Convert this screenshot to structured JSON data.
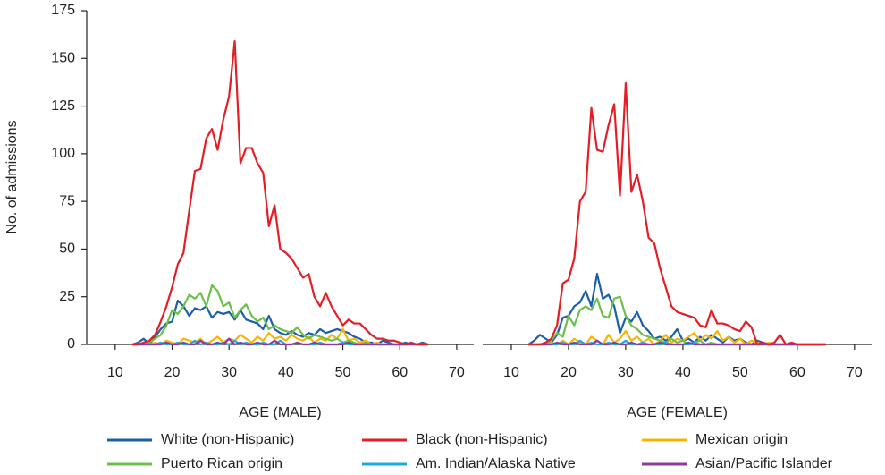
{
  "chart_data": [
    {
      "type": "line",
      "xlabel": "AGE (MALE)",
      "ylabel": "No. of admissions",
      "xlim": [
        5,
        73
      ],
      "ylim": [
        0,
        175
      ],
      "xticks": [
        10,
        20,
        30,
        40,
        50,
        60,
        70
      ],
      "yticks": [
        0,
        25,
        50,
        75,
        100,
        125,
        150,
        175
      ],
      "x": [
        13,
        14,
        15,
        16,
        17,
        18,
        19,
        20,
        21,
        22,
        23,
        24,
        25,
        26,
        27,
        28,
        29,
        30,
        31,
        32,
        33,
        34,
        35,
        36,
        37,
        38,
        39,
        40,
        41,
        42,
        43,
        44,
        45,
        46,
        47,
        48,
        49,
        50,
        51,
        52,
        53,
        54,
        55,
        56,
        57,
        58,
        59,
        60,
        61,
        62,
        63,
        64,
        65
      ],
      "series": [
        {
          "name": "White (non-Hispanic)",
          "color": "#1a5fa8",
          "values": [
            0,
            1,
            3,
            0,
            4,
            8,
            11,
            12,
            23,
            20,
            15,
            19,
            18,
            20,
            14,
            17,
            16,
            17,
            13,
            18,
            13,
            12,
            11,
            8,
            15,
            8,
            6,
            5,
            7,
            5,
            4,
            6,
            5,
            8,
            6,
            7,
            8,
            7,
            6,
            4,
            3,
            1,
            1,
            0,
            2,
            1,
            0,
            0,
            1,
            0,
            0,
            1,
            0
          ]
        },
        {
          "name": "Black (non-Hispanic)",
          "color": "#e41e26",
          "values": [
            0,
            0,
            1,
            2,
            5,
            12,
            20,
            30,
            42,
            48,
            70,
            91,
            92,
            108,
            113,
            102,
            118,
            130,
            159,
            95,
            103,
            103,
            95,
            90,
            62,
            73,
            50,
            48,
            45,
            40,
            35,
            37,
            25,
            20,
            27,
            20,
            15,
            10,
            13,
            11,
            11,
            8,
            5,
            3,
            3,
            2,
            2,
            1,
            0,
            1,
            0,
            0,
            0
          ]
        },
        {
          "name": "Mexican origin",
          "color": "#f7b500",
          "values": [
            0,
            0,
            0,
            0,
            1,
            0,
            2,
            1,
            0,
            3,
            2,
            1,
            3,
            0,
            2,
            4,
            1,
            3,
            2,
            5,
            3,
            1,
            4,
            2,
            6,
            3,
            4,
            2,
            5,
            3,
            2,
            4,
            1,
            3,
            2,
            5,
            3,
            8,
            2,
            3,
            1,
            2,
            0,
            1,
            0,
            0,
            0,
            0,
            0,
            0,
            0,
            0,
            0
          ]
        },
        {
          "name": "Puerto Rican origin",
          "color": "#6cc04a",
          "values": [
            0,
            0,
            0,
            1,
            3,
            5,
            10,
            18,
            16,
            20,
            26,
            24,
            27,
            20,
            31,
            28,
            20,
            22,
            14,
            18,
            21,
            15,
            12,
            14,
            8,
            10,
            8,
            7,
            6,
            9,
            5,
            3,
            5,
            4,
            3,
            2,
            3,
            1,
            2,
            1,
            0,
            1,
            0,
            0,
            0,
            0,
            0,
            0,
            0,
            0,
            0,
            0,
            0
          ]
        },
        {
          "name": "Am. Indian/Alaska Native",
          "color": "#1ba9e1",
          "values": [
            0,
            0,
            0,
            0,
            0,
            1,
            0,
            0,
            1,
            0,
            0,
            2,
            0,
            1,
            0,
            0,
            1,
            0,
            2,
            0,
            1,
            0,
            0,
            1,
            0,
            0,
            2,
            0,
            0,
            1,
            0,
            0,
            0,
            1,
            0,
            0,
            0,
            1,
            0,
            0,
            0,
            0,
            0,
            0,
            0,
            0,
            0,
            0,
            0,
            0,
            0,
            0,
            0
          ]
        },
        {
          "name": "Asian/Pacific Islander",
          "color": "#8e3a9d",
          "values": [
            0,
            0,
            0,
            0,
            0,
            0,
            1,
            0,
            0,
            1,
            0,
            0,
            2,
            0,
            0,
            1,
            0,
            3,
            0,
            1,
            0,
            0,
            1,
            0,
            0,
            2,
            0,
            0,
            0,
            1,
            0,
            0,
            1,
            0,
            0,
            0,
            0,
            0,
            1,
            0,
            0,
            0,
            0,
            0,
            0,
            0,
            0,
            0,
            0,
            0,
            0,
            0,
            0
          ]
        }
      ]
    },
    {
      "type": "line",
      "xlabel": "AGE (FEMALE)",
      "xlim": [
        5,
        73
      ],
      "ylim": [
        0,
        175
      ],
      "xticks": [
        10,
        20,
        30,
        40,
        50,
        60,
        70
      ],
      "x": [
        13,
        14,
        15,
        16,
        17,
        18,
        19,
        20,
        21,
        22,
        23,
        24,
        25,
        26,
        27,
        28,
        29,
        30,
        31,
        32,
        33,
        34,
        35,
        36,
        37,
        38,
        39,
        40,
        41,
        42,
        43,
        44,
        45,
        46,
        47,
        48,
        49,
        50,
        51,
        52,
        53,
        54,
        55,
        56,
        57,
        58,
        59,
        60,
        61,
        62,
        63,
        64,
        65
      ],
      "series": [
        {
          "values": [
            0,
            2,
            5,
            3,
            1,
            5,
            14,
            15,
            20,
            22,
            28,
            20,
            37,
            24,
            26,
            20,
            6,
            14,
            12,
            17,
            10,
            7,
            3,
            4,
            2,
            4,
            8,
            2,
            3,
            1,
            4,
            2,
            5,
            3,
            1,
            4,
            2,
            3,
            1,
            0,
            2,
            1,
            0,
            0,
            0,
            0,
            0,
            0,
            0,
            0,
            0,
            0,
            0
          ]
        },
        {
          "values": [
            0,
            0,
            0,
            1,
            3,
            10,
            32,
            34,
            45,
            75,
            80,
            124,
            102,
            101,
            115,
            126,
            78,
            137,
            80,
            89,
            75,
            56,
            53,
            40,
            30,
            20,
            17,
            16,
            15,
            14,
            10,
            9,
            18,
            11,
            11,
            10,
            8,
            7,
            12,
            9,
            0,
            1,
            0,
            1,
            5,
            0,
            1,
            0,
            0,
            0,
            0,
            0,
            0
          ]
        },
        {
          "values": [
            0,
            0,
            0,
            0,
            1,
            0,
            2,
            0,
            3,
            1,
            0,
            4,
            2,
            0,
            5,
            1,
            3,
            7,
            2,
            4,
            1,
            3,
            0,
            2,
            5,
            1,
            3,
            2,
            4,
            6,
            2,
            5,
            3,
            7,
            2,
            4,
            1,
            3,
            0,
            2,
            1,
            0,
            1,
            0,
            0,
            0,
            0,
            0,
            0,
            0,
            0,
            0,
            0
          ]
        },
        {
          "values": [
            0,
            0,
            0,
            0,
            2,
            6,
            4,
            15,
            10,
            18,
            20,
            18,
            24,
            15,
            14,
            24,
            25,
            15,
            10,
            8,
            5,
            4,
            3,
            2,
            1,
            3,
            1,
            2,
            0,
            1,
            2,
            0,
            1,
            0,
            0,
            0,
            0,
            0,
            0,
            0,
            0,
            0,
            0,
            0,
            0,
            0,
            0,
            0,
            0,
            0,
            0,
            0,
            0
          ]
        },
        {
          "values": [
            0,
            0,
            0,
            0,
            0,
            0,
            1,
            0,
            0,
            2,
            0,
            1,
            0,
            0,
            1,
            0,
            0,
            2,
            0,
            0,
            1,
            0,
            0,
            0,
            1,
            0,
            0,
            0,
            0,
            1,
            0,
            0,
            0,
            0,
            0,
            0,
            0,
            0,
            0,
            0,
            0,
            0,
            0,
            0,
            0,
            0,
            0,
            0,
            0,
            0,
            0,
            0,
            0
          ]
        },
        {
          "values": [
            0,
            0,
            0,
            0,
            0,
            1,
            0,
            0,
            1,
            0,
            0,
            0,
            2,
            0,
            0,
            1,
            0,
            0,
            1,
            0,
            0,
            0,
            0,
            1,
            0,
            0,
            0,
            0,
            1,
            0,
            0,
            0,
            0,
            0,
            0,
            0,
            0,
            0,
            0,
            0,
            0,
            0,
            0,
            0,
            0,
            0,
            0,
            0,
            0,
            0,
            0,
            0,
            0
          ]
        }
      ]
    }
  ]
}
